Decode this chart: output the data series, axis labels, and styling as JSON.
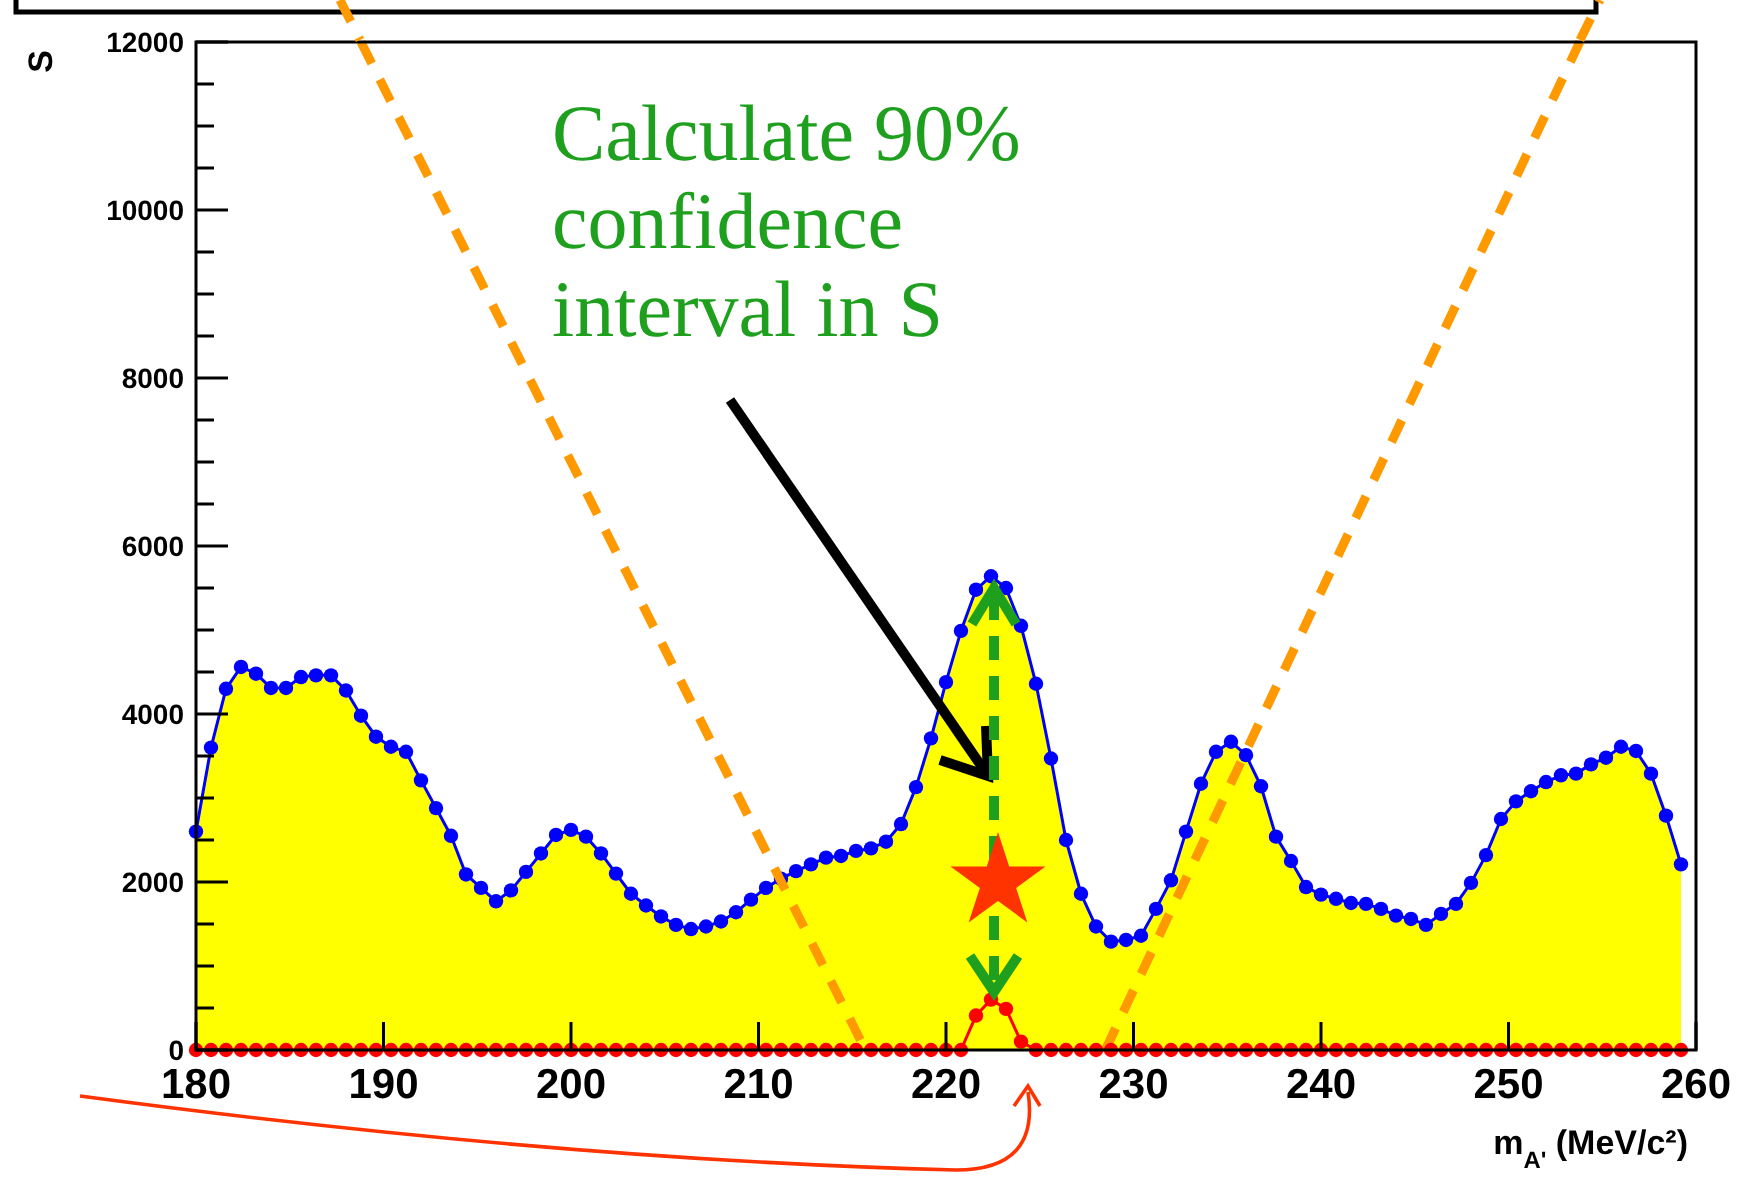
{
  "chart_data": {
    "type": "area",
    "xlabel": "m$_{A'}$ (MeV/c²)",
    "ylabel": "S",
    "xlim": [
      180,
      260
    ],
    "xticks": [
      180,
      190,
      200,
      210,
      220,
      230,
      240,
      250,
      260
    ],
    "ylim": [
      0,
      12000
    ],
    "yticks": [
      0,
      {
        "value": 500,
        "label": null
      },
      {
        "value": 1000,
        "label": null
      },
      {
        "value": 1500,
        "label": null
      },
      2000,
      {
        "value": 2500,
        "label": null
      },
      {
        "value": 3000,
        "label": null
      },
      {
        "value": 3500,
        "label": null
      },
      4000,
      {
        "value": 4500,
        "label": null
      },
      {
        "value": 5000,
        "label": null
      },
      {
        "value": 5500,
        "label": null
      },
      6000,
      {
        "value": 6500,
        "label": null
      },
      {
        "value": 7000,
        "label": null
      },
      {
        "value": 7500,
        "label": null
      },
      8000,
      {
        "value": 8500,
        "label": null
      },
      {
        "value": 9000,
        "label": null
      },
      {
        "value": 9500,
        "label": null
      },
      10000,
      {
        "value": 10500,
        "label": null
      },
      {
        "value": 11000,
        "label": null
      },
      {
        "value": 11500,
        "label": null
      },
      12000
    ],
    "grid": false,
    "legend": false,
    "marker": "circle",
    "line_style": "solid",
    "annotations": [
      "Calculate 90% confidence interval in S"
    ],
    "x": [
      180,
      180.8,
      181.6,
      182.4,
      183.2,
      184,
      184.8,
      185.6,
      186.4,
      187.2,
      188,
      188.8,
      189.6,
      190.4,
      191.2,
      192,
      192.8,
      193.6,
      194.4,
      195.2,
      196,
      196.8,
      197.6,
      198.4,
      199.2,
      200,
      200.8,
      201.6,
      202.4,
      203.2,
      204,
      204.8,
      205.6,
      206.4,
      207.2,
      208,
      208.8,
      209.6,
      210.4,
      211.2,
      212,
      212.8,
      213.6,
      214.4,
      215.2,
      216,
      216.8,
      217.6,
      218.4,
      219.2,
      220,
      220.8,
      221.6,
      222.4,
      223.2,
      224,
      224.8,
      225.6,
      226.4,
      227.2,
      228,
      228.8,
      229.6,
      230.4,
      231.2,
      232,
      232.8,
      233.6,
      234.4,
      235.2,
      236,
      236.8,
      237.6,
      238.4,
      239.2,
      240,
      240.8,
      241.6,
      242.4,
      243.2,
      244,
      244.8,
      245.6,
      246.4,
      247.2,
      248,
      248.8,
      249.6,
      250.4,
      251.2,
      252,
      252.8,
      253.6,
      254.4,
      255.2,
      256,
      256.8,
      257.6,
      258.4,
      259.2
    ],
    "series": [
      {
        "color": "#ffff00",
        "marker": "none",
        "values": [
          2600,
          3600,
          4300,
          4560,
          4480,
          4310,
          4310,
          4440,
          4460,
          4460,
          4280,
          3980,
          3730,
          3610,
          3550,
          3210,
          2880,
          2550,
          2090,
          1930,
          1770,
          1900,
          2120,
          2340,
          2560,
          2620,
          2540,
          2340,
          2100,
          1860,
          1720,
          1590,
          1490,
          1440,
          1470,
          1530,
          1640,
          1790,
          1930,
          2040,
          2130,
          2210,
          2290,
          2310,
          2370,
          2400,
          2480,
          2690,
          3130,
          3710,
          4380,
          4990,
          5480,
          5640,
          5500,
          5050,
          4360,
          3470,
          2500,
          1860,
          1470,
          1290,
          1310,
          1360,
          1680,
          2020,
          2600,
          3170,
          3550,
          3670,
          3510,
          3140,
          2540,
          2250,
          1940,
          1850,
          1800,
          1750,
          1740,
          1680,
          1600,
          1560,
          1490,
          1620,
          1740,
          1990,
          2320,
          2750,
          2960,
          3080,
          3190,
          3270,
          3290,
          3400,
          3480,
          3610,
          3560,
          3290,
          2790,
          2210
        ]
      },
      {
        "type": "line",
        "color": "#0000ff",
        "values": [
          2600,
          3600,
          4300,
          4560,
          4480,
          4310,
          4310,
          4440,
          4460,
          4460,
          4280,
          3980,
          3730,
          3610,
          3550,
          3210,
          2880,
          2550,
          2090,
          1930,
          1770,
          1900,
          2120,
          2340,
          2560,
          2620,
          2540,
          2340,
          2100,
          1860,
          1720,
          1590,
          1490,
          1440,
          1470,
          1530,
          1640,
          1790,
          1930,
          2040,
          2130,
          2210,
          2290,
          2310,
          2370,
          2400,
          2480,
          2690,
          3130,
          3710,
          4380,
          4990,
          5480,
          5640,
          5500,
          5050,
          4360,
          3470,
          2500,
          1860,
          1470,
          1290,
          1310,
          1360,
          1680,
          2020,
          2600,
          3170,
          3550,
          3670,
          3510,
          3140,
          2540,
          2250,
          1940,
          1850,
          1800,
          1750,
          1740,
          1680,
          1600,
          1560,
          1490,
          1620,
          1740,
          1990,
          2320,
          2750,
          2960,
          3080,
          3190,
          3270,
          3290,
          3400,
          3480,
          3610,
          3560,
          3290,
          2790,
          2210
        ]
      },
      {
        "type": "line",
        "color": "#ff9900",
        "marker": "none",
        "line_style": "dashed",
        "x": [
          188.8,
          215.7
        ],
        "values": [
          12000,
          0
        ]
      },
      {
        "type": "line",
        "color": "#ff9900",
        "marker": "none",
        "line_style": "dashed",
        "x": [
          228.5,
          253.8
        ],
        "values": [
          0,
          12000
        ]
      },
      {
        "type": "line",
        "color": "#ff0000",
        "values": [
          0,
          0,
          0,
          0,
          0,
          0,
          0,
          0,
          0,
          0,
          0,
          0,
          0,
          0,
          0,
          0,
          0,
          0,
          0,
          0,
          0,
          0,
          0,
          0,
          0,
          0,
          0,
          0,
          0,
          0,
          0,
          0,
          0,
          0,
          0,
          0,
          0,
          0,
          0,
          0,
          0,
          0,
          0,
          0,
          0,
          0,
          0,
          0,
          0,
          0,
          0,
          0,
          410,
          600,
          490,
          100,
          0,
          0,
          0,
          0,
          0,
          0,
          0,
          0,
          0,
          0,
          0,
          0,
          0,
          0,
          0,
          0,
          0,
          0,
          0,
          0,
          0,
          0,
          0,
          0,
          0,
          0,
          0,
          0,
          0,
          0,
          0,
          0,
          0,
          0,
          0,
          0,
          0,
          0,
          0,
          0,
          0,
          0,
          0,
          0
        ]
      }
    ]
  }
}
